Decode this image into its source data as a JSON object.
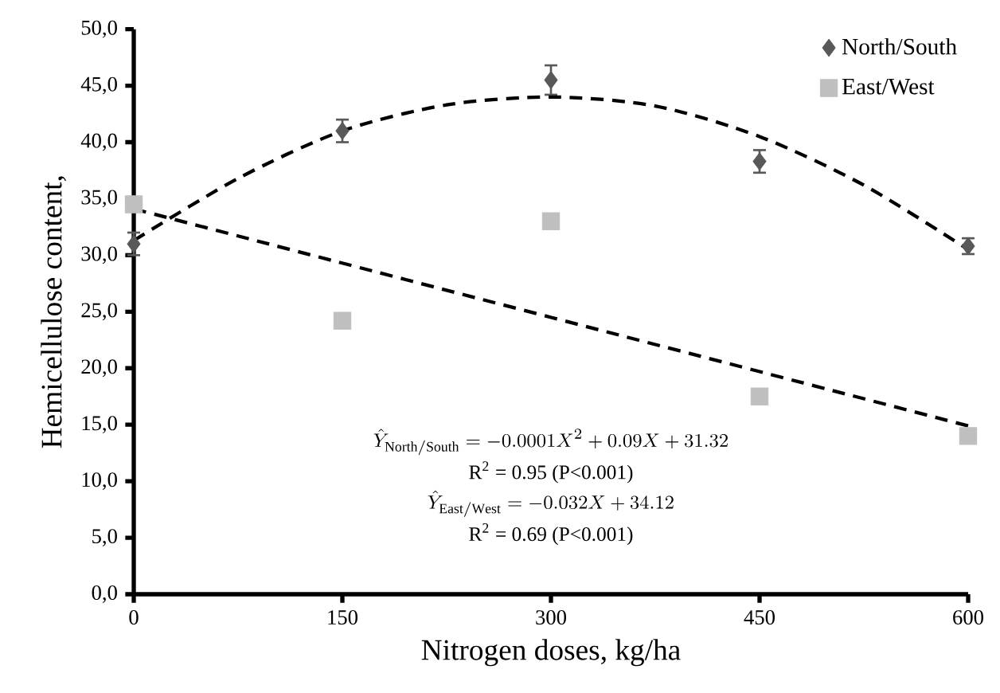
{
  "chart_data": {
    "type": "scatter",
    "xlabel": "Nitrogen doses, kg/ha",
    "ylabel": "Hemicellulose content,",
    "x": [
      0,
      150,
      300,
      450,
      600
    ],
    "xlim": [
      0,
      600
    ],
    "xticks": [
      0,
      150,
      300,
      450,
      600
    ],
    "ylim": [
      0,
      50
    ],
    "yticks": [
      {
        "value": 0,
        "label": "0,0"
      },
      {
        "value": 5,
        "label": "5,0"
      },
      {
        "value": 10,
        "label": "10,0"
      },
      {
        "value": 15,
        "label": "15,0"
      },
      {
        "value": 20,
        "label": "20,0"
      },
      {
        "value": 25,
        "label": "25,0"
      },
      {
        "value": 30,
        "label": "30,0"
      },
      {
        "value": 35,
        "label": "35,0"
      },
      {
        "value": 40,
        "label": "40,0"
      },
      {
        "value": 45,
        "label": "45,0"
      },
      {
        "value": 50,
        "label": "50,0"
      }
    ],
    "legend": "top right",
    "series": [
      {
        "name": "North/South",
        "color": "#595959",
        "marker": "diamond",
        "values": [
          31.0,
          41.0,
          45.5,
          38.3,
          30.8
        ],
        "errors": [
          1.0,
          1.0,
          1.3,
          1.0,
          0.7
        ]
      },
      {
        "name": "East/West",
        "color": "#bfbfbf",
        "marker": "square",
        "values": [
          34.5,
          24.2,
          33.0,
          17.5,
          14.0
        ]
      },
      {
        "type": "line",
        "color": "#000000",
        "line_style": "dashed",
        "marker": "none",
        "x": [
          0,
          75,
          150,
          225,
          300,
          375,
          450,
          525,
          600
        ],
        "values": [
          31.3,
          36.8,
          41.0,
          43.3,
          44.0,
          43.2,
          40.5,
          36.2,
          30.5
        ]
      },
      {
        "type": "line",
        "color": "#000000",
        "line_style": "dashed",
        "marker": "none",
        "x": [
          0,
          600
        ],
        "values": [
          34.1,
          14.9
        ]
      }
    ],
    "annotations": [
      "\\hat{Y}_{\\mathrm{North/South}} = -0.0001X^{2} + 0.09X + 31.32",
      "R$^{2}$ = 0.95 (P<0.001)",
      "\\hat{Y}_{\\mathrm{East/West}} = -0.032X + 34.12",
      "R$^{2}$ = 0.69 (P<0.001)"
    ]
  }
}
